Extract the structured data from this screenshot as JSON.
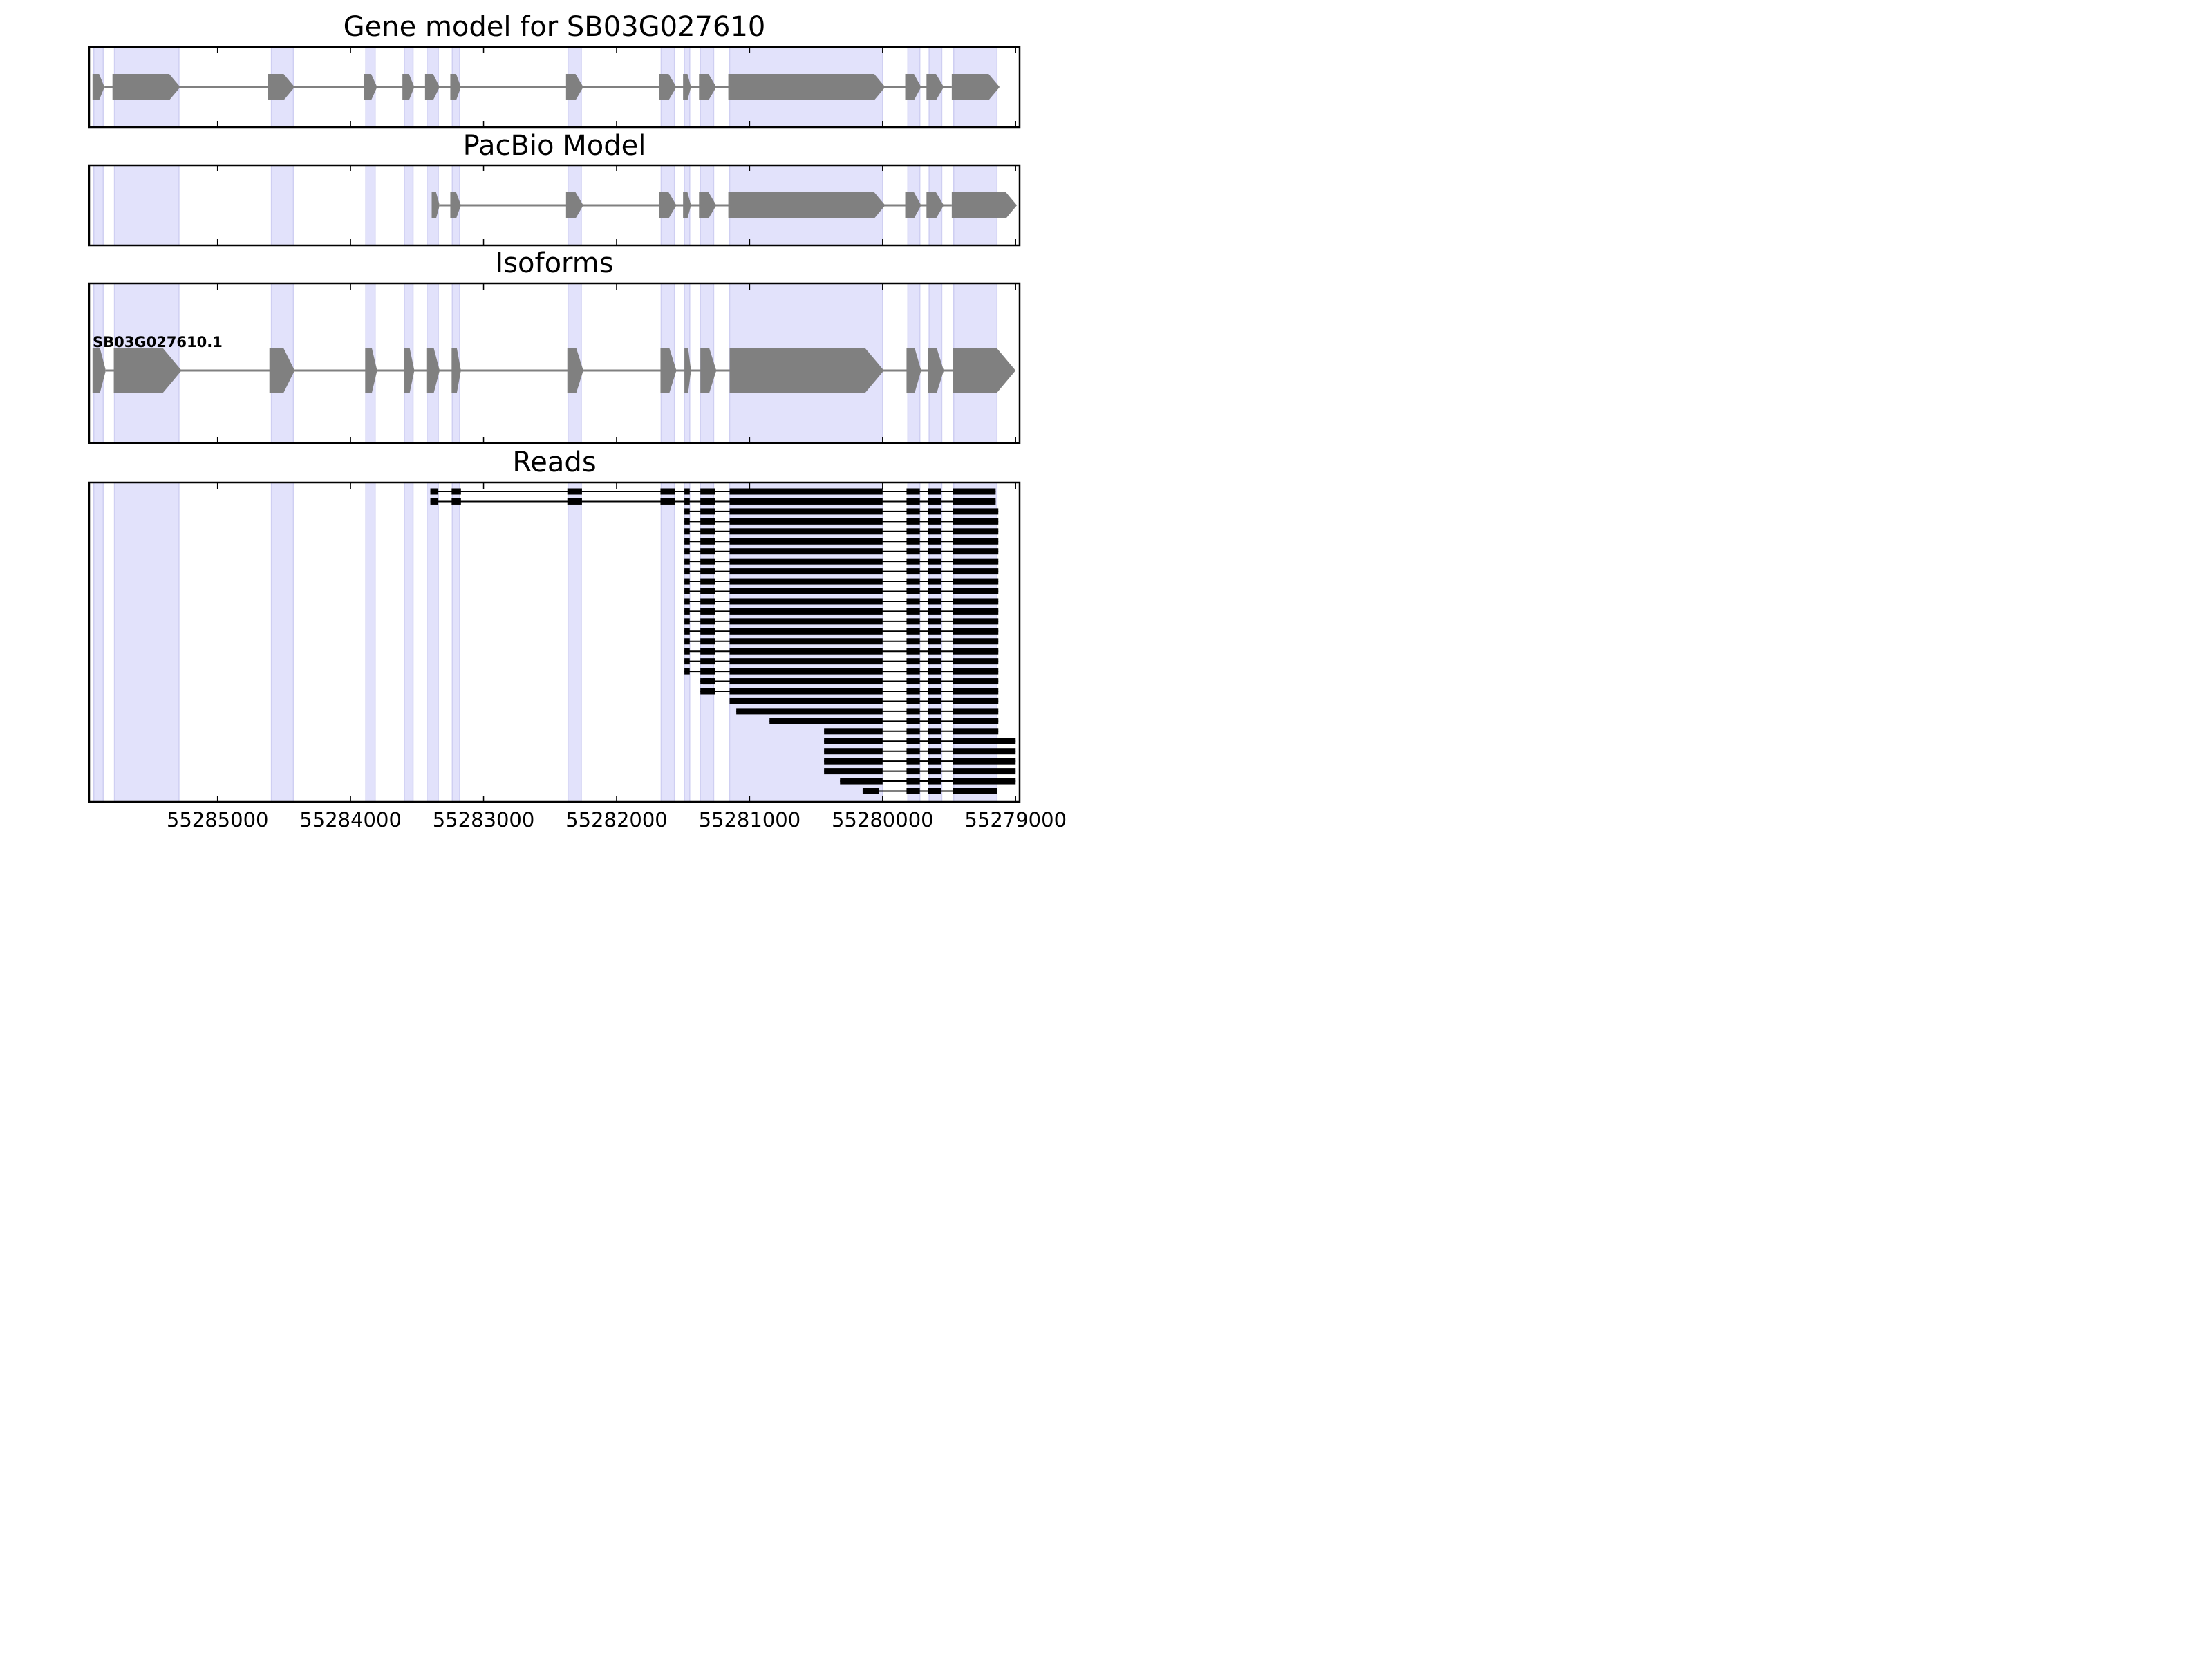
{
  "chart_data": {
    "type": "gene-track",
    "x_axis": {
      "ticks": [
        55285000,
        55284000,
        55283000,
        55282000,
        55281000,
        55280000,
        55279000
      ],
      "tick_labels": [
        "55285000",
        "55284000",
        "55283000",
        "55282000",
        "55281000",
        "55280000",
        "55279000"
      ],
      "range": [
        55285965,
        55278970
      ],
      "reversed": true
    },
    "exon_highlight_color": "#e2e2fb",
    "feature_color": "#808080",
    "read_color": "#000000",
    "exon_regions": [
      [
        55285930,
        55285860
      ],
      [
        55285775,
        55285290
      ],
      [
        55284595,
        55284430
      ],
      [
        55283885,
        55283815
      ],
      [
        55283595,
        55283530
      ],
      [
        55283425,
        55283340
      ],
      [
        55283235,
        55283180
      ],
      [
        55282365,
        55282265
      ],
      [
        55281665,
        55281565
      ],
      [
        55281490,
        55281450
      ],
      [
        55281370,
        55281270
      ],
      [
        55281150,
        55280000
      ],
      [
        55279810,
        55279720
      ],
      [
        55279650,
        55279555
      ],
      [
        55279465,
        55279140
      ]
    ],
    "panels": [
      {
        "title": "Gene model for SB03G027610",
        "exons": [
          [
            55285940,
            55285850
          ],
          [
            55285790,
            55285280
          ],
          [
            55284620,
            55284420
          ],
          [
            55283900,
            55283800
          ],
          [
            55283610,
            55283520
          ],
          [
            55283440,
            55283330
          ],
          [
            55283250,
            55283170
          ],
          [
            55282380,
            55282250
          ],
          [
            55281680,
            55281550
          ],
          [
            55281500,
            55281440
          ],
          [
            55281380,
            55281250
          ],
          [
            55281160,
            55279980
          ],
          [
            55279830,
            55279710
          ],
          [
            55279670,
            55279540
          ],
          [
            55279480,
            55279120
          ]
        ]
      },
      {
        "title": "PacBio Model",
        "exons": [
          [
            55283390,
            55283330
          ],
          [
            55283250,
            55283170
          ],
          [
            55282380,
            55282250
          ],
          [
            55281680,
            55281550
          ],
          [
            55281500,
            55281440
          ],
          [
            55281380,
            55281250
          ],
          [
            55281160,
            55279980
          ],
          [
            55279830,
            55279710
          ],
          [
            55279670,
            55279540
          ],
          [
            55279480,
            55278990
          ]
        ]
      },
      {
        "title": "Isoforms",
        "isoform_name": "SB03G027610.1",
        "exons": [
          [
            55285940,
            55285840
          ],
          [
            55285780,
            55285270
          ],
          [
            55284610,
            55284420
          ],
          [
            55283890,
            55283800
          ],
          [
            55283600,
            55283520
          ],
          [
            55283430,
            55283330
          ],
          [
            55283240,
            55283170
          ],
          [
            55282370,
            55282250
          ],
          [
            55281670,
            55281550
          ],
          [
            55281490,
            55281440
          ],
          [
            55281370,
            55281250
          ],
          [
            55281150,
            55279990
          ],
          [
            55279820,
            55279710
          ],
          [
            55279660,
            55279540
          ],
          [
            55279470,
            55279000
          ]
        ]
      }
    ],
    "reads_panel": {
      "title": "Reads",
      "reads": [
        [
          [
            55283400,
            55283340
          ],
          [
            55283240,
            55283170
          ],
          [
            55282370,
            55282260
          ],
          [
            55281670,
            55281560
          ],
          [
            55281490,
            55281450
          ],
          [
            55281370,
            55281260
          ],
          [
            55281150,
            55280000
          ],
          [
            55279820,
            55279720
          ],
          [
            55279660,
            55279560
          ],
          [
            55279470,
            55279150
          ]
        ],
        [
          [
            55283400,
            55283340
          ],
          [
            55283240,
            55283170
          ],
          [
            55282370,
            55282260
          ],
          [
            55281670,
            55281560
          ],
          [
            55281490,
            55281450
          ],
          [
            55281370,
            55281260
          ],
          [
            55281150,
            55280000
          ],
          [
            55279820,
            55279720
          ],
          [
            55279660,
            55279560
          ],
          [
            55279470,
            55279150
          ]
        ],
        [
          [
            55281490,
            55281450
          ],
          [
            55281370,
            55281260
          ],
          [
            55281150,
            55280000
          ],
          [
            55279820,
            55279720
          ],
          [
            55279660,
            55279560
          ],
          [
            55279470,
            55279130
          ]
        ],
        [
          [
            55281490,
            55281450
          ],
          [
            55281370,
            55281260
          ],
          [
            55281150,
            55280000
          ],
          [
            55279820,
            55279720
          ],
          [
            55279660,
            55279560
          ],
          [
            55279470,
            55279130
          ]
        ],
        [
          [
            55281490,
            55281450
          ],
          [
            55281370,
            55281260
          ],
          [
            55281150,
            55280000
          ],
          [
            55279820,
            55279720
          ],
          [
            55279660,
            55279560
          ],
          [
            55279470,
            55279130
          ]
        ],
        [
          [
            55281490,
            55281450
          ],
          [
            55281370,
            55281260
          ],
          [
            55281150,
            55280000
          ],
          [
            55279820,
            55279720
          ],
          [
            55279660,
            55279560
          ],
          [
            55279470,
            55279130
          ]
        ],
        [
          [
            55281490,
            55281450
          ],
          [
            55281370,
            55281260
          ],
          [
            55281150,
            55280000
          ],
          [
            55279820,
            55279720
          ],
          [
            55279660,
            55279560
          ],
          [
            55279470,
            55279130
          ]
        ],
        [
          [
            55281490,
            55281450
          ],
          [
            55281370,
            55281260
          ],
          [
            55281150,
            55280000
          ],
          [
            55279820,
            55279720
          ],
          [
            55279660,
            55279560
          ],
          [
            55279470,
            55279130
          ]
        ],
        [
          [
            55281490,
            55281450
          ],
          [
            55281370,
            55281260
          ],
          [
            55281150,
            55280000
          ],
          [
            55279820,
            55279720
          ],
          [
            55279660,
            55279560
          ],
          [
            55279470,
            55279130
          ]
        ],
        [
          [
            55281490,
            55281450
          ],
          [
            55281370,
            55281260
          ],
          [
            55281150,
            55280000
          ],
          [
            55279820,
            55279720
          ],
          [
            55279660,
            55279560
          ],
          [
            55279470,
            55279130
          ]
        ],
        [
          [
            55281490,
            55281450
          ],
          [
            55281370,
            55281260
          ],
          [
            55281150,
            55280000
          ],
          [
            55279820,
            55279720
          ],
          [
            55279660,
            55279560
          ],
          [
            55279470,
            55279130
          ]
        ],
        [
          [
            55281490,
            55281450
          ],
          [
            55281370,
            55281260
          ],
          [
            55281150,
            55280000
          ],
          [
            55279820,
            55279720
          ],
          [
            55279660,
            55279560
          ],
          [
            55279470,
            55279130
          ]
        ],
        [
          [
            55281490,
            55281450
          ],
          [
            55281370,
            55281260
          ],
          [
            55281150,
            55280000
          ],
          [
            55279820,
            55279720
          ],
          [
            55279660,
            55279560
          ],
          [
            55279470,
            55279130
          ]
        ],
        [
          [
            55281490,
            55281450
          ],
          [
            55281370,
            55281260
          ],
          [
            55281150,
            55280000
          ],
          [
            55279820,
            55279720
          ],
          [
            55279660,
            55279560
          ],
          [
            55279470,
            55279130
          ]
        ],
        [
          [
            55281490,
            55281450
          ],
          [
            55281370,
            55281260
          ],
          [
            55281150,
            55280000
          ],
          [
            55279820,
            55279720
          ],
          [
            55279660,
            55279560
          ],
          [
            55279470,
            55279130
          ]
        ],
        [
          [
            55281490,
            55281450
          ],
          [
            55281370,
            55281260
          ],
          [
            55281150,
            55280000
          ],
          [
            55279820,
            55279720
          ],
          [
            55279660,
            55279560
          ],
          [
            55279470,
            55279130
          ]
        ],
        [
          [
            55281490,
            55281450
          ],
          [
            55281370,
            55281260
          ],
          [
            55281150,
            55280000
          ],
          [
            55279820,
            55279720
          ],
          [
            55279660,
            55279560
          ],
          [
            55279470,
            55279130
          ]
        ],
        [
          [
            55281490,
            55281450
          ],
          [
            55281370,
            55281260
          ],
          [
            55281150,
            55280000
          ],
          [
            55279820,
            55279720
          ],
          [
            55279660,
            55279560
          ],
          [
            55279470,
            55279130
          ]
        ],
        [
          [
            55281490,
            55281450
          ],
          [
            55281370,
            55281260
          ],
          [
            55281150,
            55280000
          ],
          [
            55279820,
            55279720
          ],
          [
            55279660,
            55279560
          ],
          [
            55279470,
            55279130
          ]
        ],
        [
          [
            55281350,
            55281290
          ],
          [
            55281370,
            55281260
          ],
          [
            55281150,
            55280000
          ],
          [
            55279820,
            55279720
          ],
          [
            55279660,
            55279560
          ],
          [
            55279470,
            55279130
          ]
        ],
        [
          [
            55281350,
            55281290
          ],
          [
            55281370,
            55281260
          ],
          [
            55281150,
            55280000
          ],
          [
            55279820,
            55279720
          ],
          [
            55279660,
            55279560
          ],
          [
            55279470,
            55279130
          ]
        ],
        [
          [
            55281150,
            55280000
          ],
          [
            55279820,
            55279720
          ],
          [
            55279660,
            55279560
          ],
          [
            55279470,
            55279130
          ]
        ],
        [
          [
            55281100,
            55280000
          ],
          [
            55279820,
            55279720
          ],
          [
            55279660,
            55279560
          ],
          [
            55279470,
            55279130
          ]
        ],
        [
          [
            55280850,
            55280000
          ],
          [
            55279820,
            55279720
          ],
          [
            55279660,
            55279560
          ],
          [
            55279470,
            55279130
          ]
        ],
        [
          [
            55280440,
            55280000
          ],
          [
            55279820,
            55279720
          ],
          [
            55279660,
            55279560
          ],
          [
            55279470,
            55279130
          ]
        ],
        [
          [
            55280440,
            55280000
          ],
          [
            55279820,
            55279720
          ],
          [
            55279660,
            55279560
          ],
          [
            55279470,
            55279000
          ]
        ],
        [
          [
            55280440,
            55280000
          ],
          [
            55279820,
            55279720
          ],
          [
            55279660,
            55279560
          ],
          [
            55279470,
            55279000
          ]
        ],
        [
          [
            55280440,
            55280000
          ],
          [
            55279820,
            55279720
          ],
          [
            55279660,
            55279560
          ],
          [
            55279470,
            55279000
          ]
        ],
        [
          [
            55280440,
            55280000
          ],
          [
            55279820,
            55279720
          ],
          [
            55279660,
            55279560
          ],
          [
            55279470,
            55279000
          ]
        ],
        [
          [
            55280320,
            55280000
          ],
          [
            55279820,
            55279720
          ],
          [
            55279660,
            55279560
          ],
          [
            55279470,
            55279000
          ]
        ],
        [
          [
            55280150,
            55280030
          ],
          [
            55279820,
            55279720
          ],
          [
            55279660,
            55279560
          ],
          [
            55279470,
            55279140
          ]
        ]
      ]
    }
  }
}
